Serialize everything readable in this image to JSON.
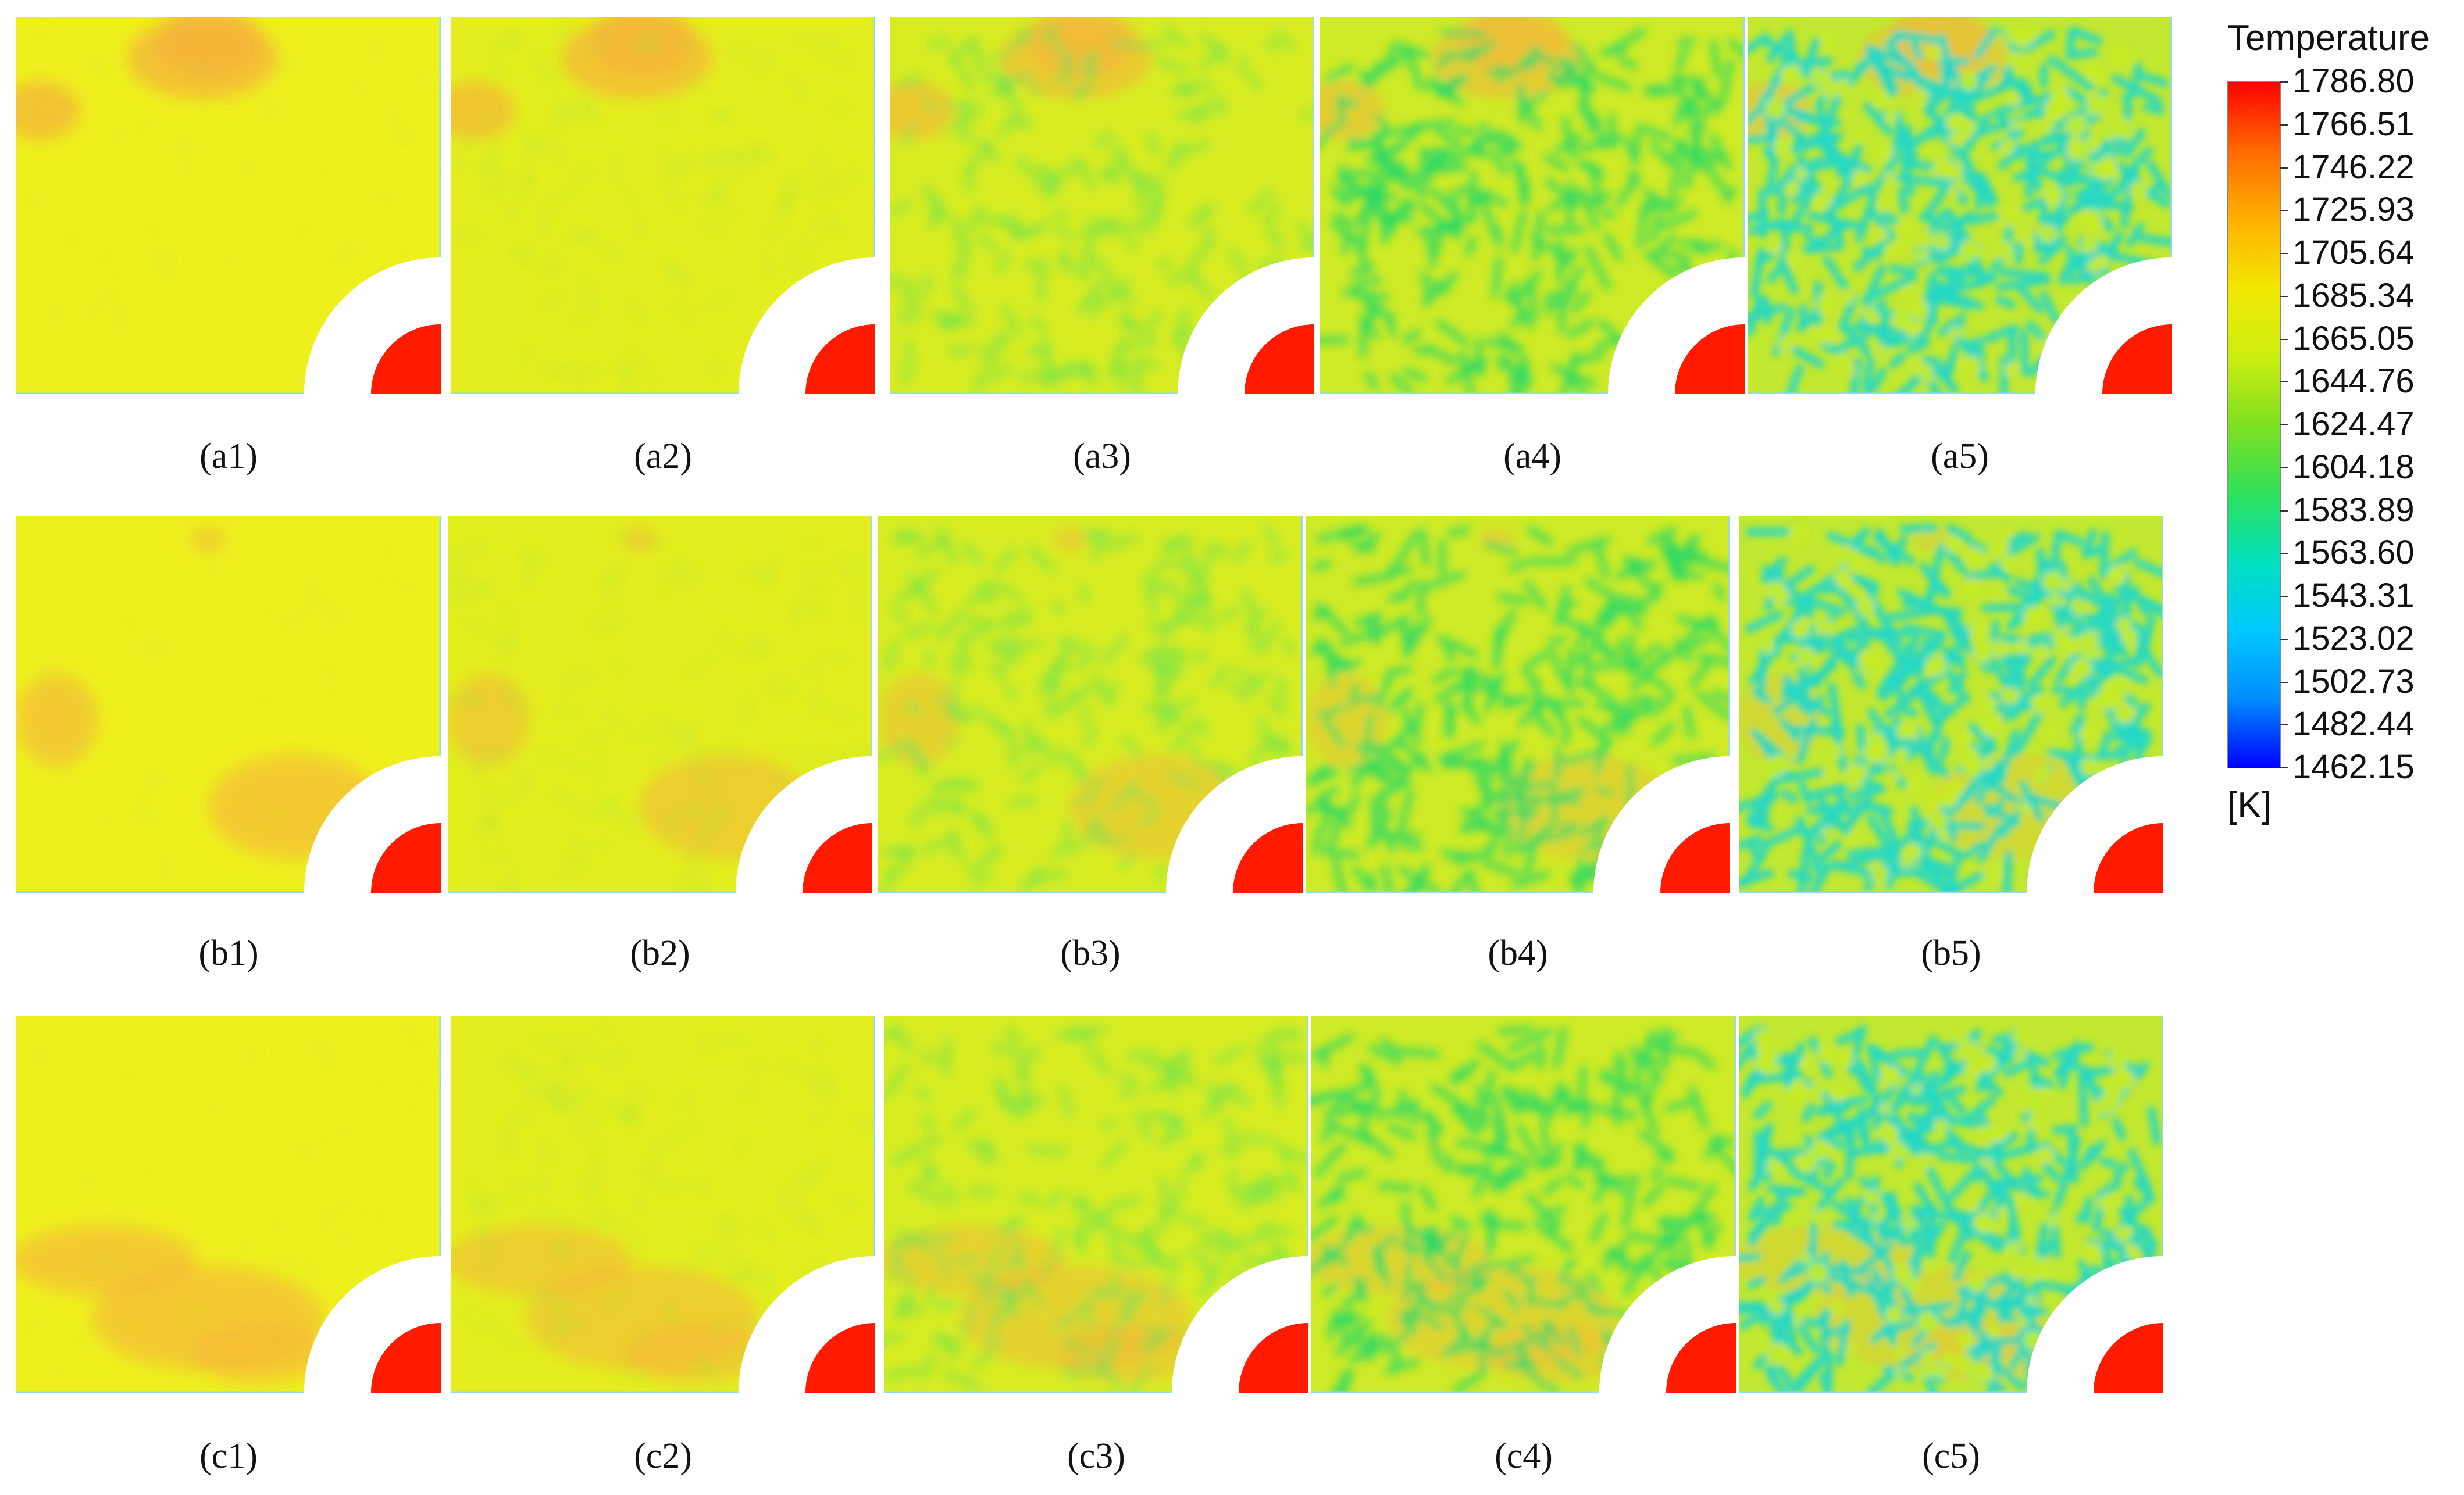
{
  "figure": {
    "rows": [
      {
        "captions": [
          "(a1)",
          "(a2)",
          "(a3)",
          "(a4)",
          "(a5)"
        ]
      },
      {
        "captions": [
          "(b1)",
          "(b2)",
          "(b3)",
          "(b4)",
          "(b5)"
        ]
      },
      {
        "captions": [
          "(c1)",
          "(c2)",
          "(c3)",
          "(c4)",
          "(c5)"
        ]
      }
    ]
  },
  "legend": {
    "title": "Temperature",
    "unit": "[K]",
    "ticks": [
      "1786.80",
      "1766.51",
      "1746.22",
      "1725.93",
      "1705.64",
      "1685.34",
      "1665.05",
      "1644.76",
      "1624.47",
      "1604.18",
      "1583.89",
      "1563.60",
      "1543.31",
      "1523.02",
      "1502.73",
      "1482.44",
      "1462.15"
    ],
    "colors_top_to_bottom": [
      "#ff0000",
      "#ff6a00",
      "#ffb000",
      "#f2e600",
      "#cdee10",
      "#7fe020",
      "#2ee05a",
      "#00e0c0",
      "#00c8ff",
      "#008cff",
      "#0000ff"
    ]
  }
}
